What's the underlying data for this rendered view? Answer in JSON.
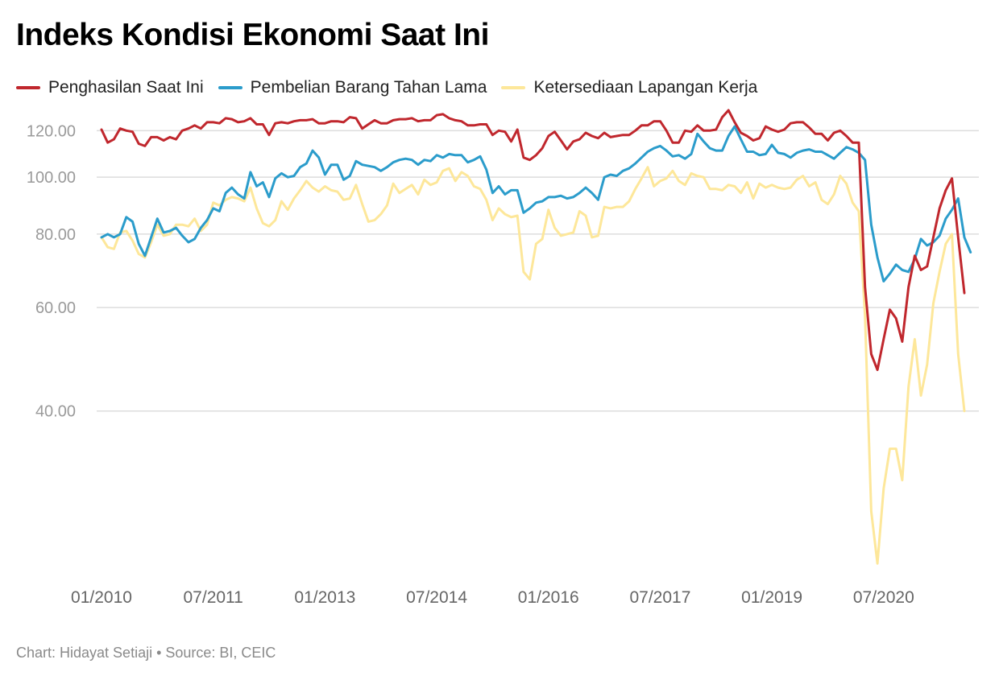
{
  "title": "Indeks Kondisi Ekonomi Saat Ini",
  "footer": "Chart: Hidayat Setiaji • Source: BI, CEIC",
  "chart_data": {
    "type": "line",
    "title": "Indeks Kondisi Ekonomi Saat Ini",
    "xlabel": "",
    "ylabel": "",
    "y_scale": "log",
    "ylim": [
      21,
      135
    ],
    "y_ticks": [
      40,
      60,
      80,
      100,
      120
    ],
    "y_tick_labels": [
      "40.00",
      "60.00",
      "80.00",
      "100.00",
      "120.00"
    ],
    "x_tick_labels": [
      "01/2010",
      "07/2011",
      "01/2013",
      "07/2014",
      "01/2016",
      "07/2017",
      "01/2019",
      "07/2020"
    ],
    "x_tick_positions": [
      0,
      18,
      36,
      54,
      72,
      90,
      108,
      126
    ],
    "x_start": "2010-01",
    "grid": true,
    "legend_position": "top-left",
    "series": [
      {
        "name": "Penghasilan Saat Ini",
        "color": "#c0272d",
        "values": [
          120.5,
          114.5,
          116,
          121,
          120,
          119.5,
          114,
          113,
          117,
          117,
          115.5,
          117,
          116,
          120,
          121,
          122.5,
          121,
          124,
          124,
          123.5,
          126,
          125.5,
          124,
          124.5,
          126,
          123,
          123,
          118,
          123.5,
          124,
          123.5,
          124.5,
          125,
          125,
          125.5,
          123.5,
          123.5,
          124.5,
          124.5,
          124,
          126.5,
          126,
          121,
          123,
          125,
          123.5,
          123.5,
          125,
          125.5,
          125.5,
          126,
          124.5,
          125,
          125,
          127.5,
          128,
          126,
          125,
          124.5,
          122.5,
          122.5,
          123,
          123,
          118,
          120,
          119.5,
          115,
          120.5,
          108,
          107,
          109,
          112,
          117.5,
          119.5,
          115.5,
          111.5,
          115,
          116,
          119,
          117.5,
          116.5,
          119,
          117,
          117.5,
          118,
          118,
          120,
          122.5,
          122.5,
          124.5,
          124.5,
          120,
          114.5,
          114.5,
          120,
          119.5,
          122.5,
          120,
          120,
          120.5,
          126.5,
          130,
          124,
          119,
          117.5,
          115.5,
          116.5,
          122,
          120.5,
          119.5,
          120.5,
          123.5,
          124,
          124,
          121.5,
          118.5,
          118.5,
          115.5,
          119,
          120,
          117.5,
          114.5,
          114.5,
          65,
          50,
          47,
          53,
          59.5,
          57.5,
          52.5,
          65,
          73.5,
          69.5,
          70.5,
          79,
          88.5,
          95,
          99.5,
          79,
          63.5
        ]
      },
      {
        "name": "Pembelian Barang Tahan Lama",
        "color": "#2b9ccb",
        "values": [
          79,
          80,
          79,
          80,
          85.5,
          84,
          77,
          73.5,
          79,
          85,
          80.5,
          81,
          82,
          79.5,
          77.5,
          78.5,
          82,
          84.5,
          88.5,
          87.5,
          94,
          96,
          93.5,
          92,
          102,
          96.5,
          98,
          92.5,
          99.5,
          101.5,
          100,
          100.5,
          104,
          105.5,
          111,
          108,
          101,
          105,
          105,
          99,
          100.5,
          106.5,
          105,
          104.5,
          104,
          102.5,
          104,
          106,
          107,
          107.5,
          107,
          105,
          107,
          106.5,
          109,
          108,
          109.5,
          109,
          109,
          106,
          107,
          108.5,
          103,
          94,
          96.5,
          93.5,
          95,
          95,
          87,
          88.5,
          90.5,
          91,
          92.5,
          92.5,
          93,
          92,
          92.5,
          94,
          96,
          94,
          91.5,
          100,
          101,
          100.5,
          102.5,
          103.5,
          105.5,
          108,
          110.5,
          112,
          113,
          111,
          108.5,
          109,
          107.5,
          109.5,
          118.5,
          115,
          112,
          111,
          111,
          117.5,
          122,
          116,
          110.5,
          110.5,
          109,
          109.5,
          113.5,
          110,
          109.5,
          108,
          110,
          111,
          111.5,
          110.5,
          110.5,
          109,
          107.5,
          110,
          112.5,
          111.5,
          110,
          107,
          83,
          73,
          66.5,
          68.5,
          71,
          69.5,
          69,
          72.5,
          78.5,
          76.5,
          77.5,
          79.5,
          85,
          88,
          92,
          79,
          74.5
        ]
      },
      {
        "name": "Ketersediaan Lapangan Kerja",
        "color": "#fde79a",
        "values": [
          79,
          76,
          75.5,
          80.5,
          81,
          78,
          74,
          73,
          77.5,
          83,
          79.5,
          80,
          83,
          83,
          82.5,
          85,
          81,
          83,
          90.5,
          89.5,
          91.5,
          92.5,
          92,
          91,
          96,
          88.5,
          83.5,
          82.5,
          84.5,
          91,
          88,
          92,
          95,
          98.5,
          96,
          94.5,
          96.5,
          95,
          94.5,
          91.5,
          92,
          97,
          90,
          84,
          84.5,
          86.5,
          89.5,
          97.5,
          94,
          95.5,
          97,
          93.5,
          99,
          97,
          98,
          102.5,
          103.5,
          98.5,
          102,
          100.5,
          96.5,
          95.5,
          91.5,
          84.5,
          88.5,
          86.5,
          85.5,
          86,
          69,
          67,
          77,
          78.5,
          88,
          82,
          79.5,
          80,
          80.5,
          87.5,
          86,
          79,
          79.5,
          89,
          88.5,
          89,
          89,
          91,
          95.5,
          99.5,
          104,
          96.5,
          98.5,
          99.5,
          102.5,
          98.5,
          97,
          101.5,
          100.5,
          100,
          95.5,
          95.5,
          95,
          97,
          96.5,
          94,
          98,
          92,
          97.5,
          96,
          97,
          96,
          95.5,
          96,
          99,
          100.5,
          96.5,
          98,
          91.5,
          90,
          93.5,
          100.5,
          97.5,
          90.5,
          87.5,
          58,
          27,
          22,
          29.5,
          34.5,
          34.5,
          30.5,
          44,
          53,
          42.5,
          48,
          61,
          69,
          77,
          80,
          50,
          40
        ]
      }
    ]
  }
}
